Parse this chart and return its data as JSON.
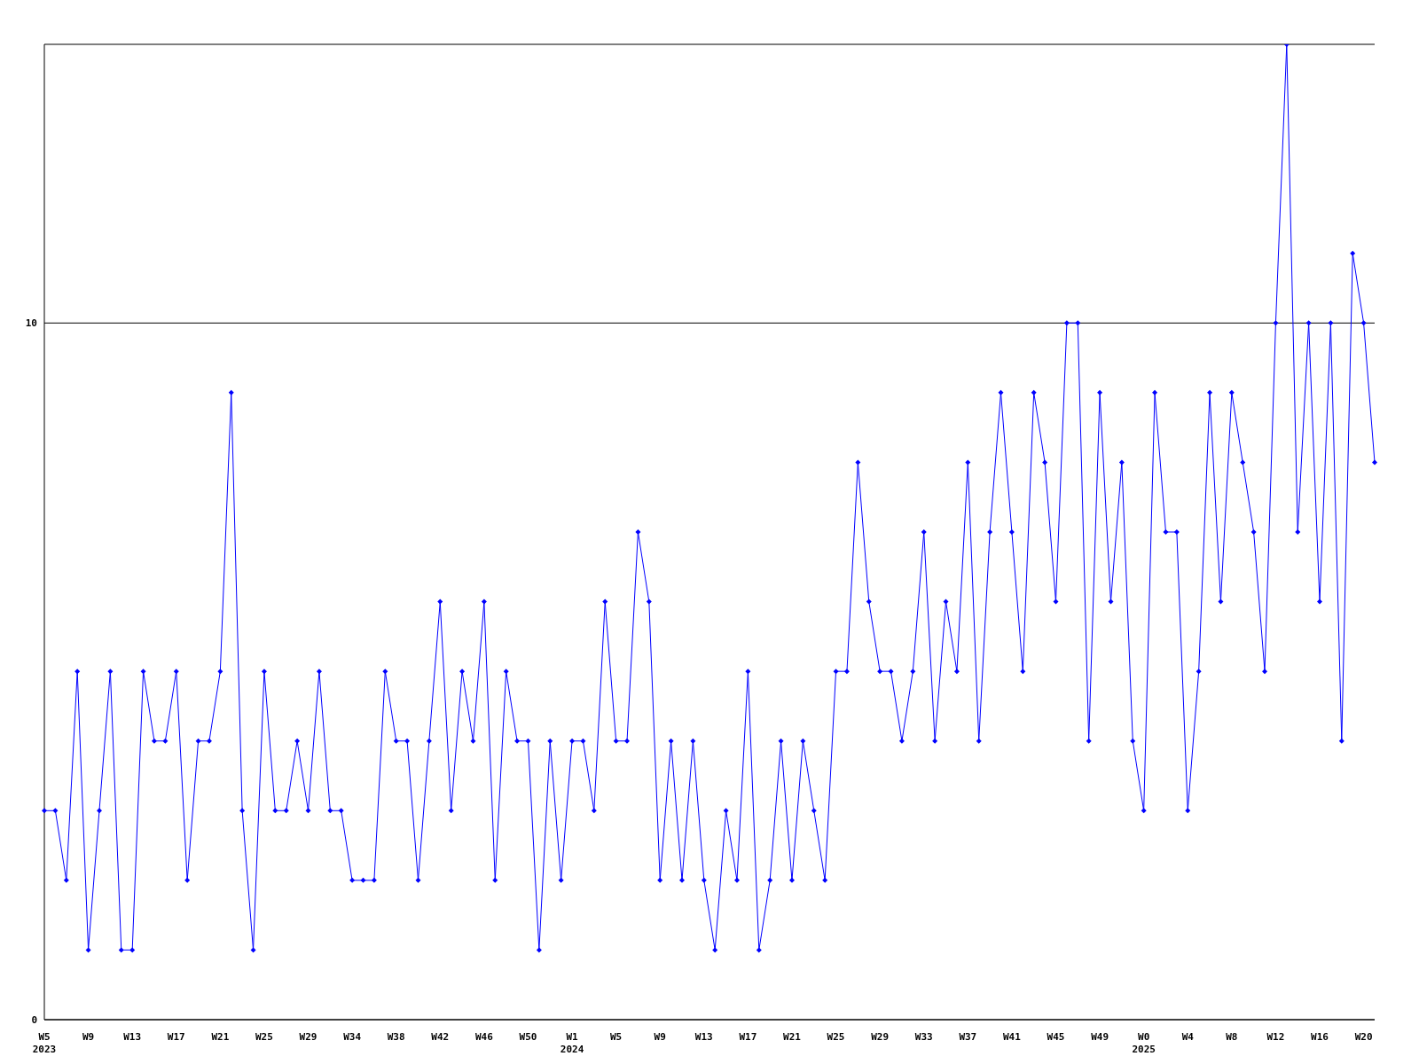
{
  "chart_data": {
    "type": "line",
    "categories": [
      "W5\n2023",
      null,
      null,
      null,
      "W9",
      null,
      null,
      null,
      "W13",
      null,
      null,
      null,
      "W17",
      null,
      null,
      null,
      "W21",
      null,
      null,
      null,
      "W25",
      null,
      null,
      null,
      "W29",
      null,
      null,
      null,
      "W34",
      null,
      null,
      null,
      "W38",
      null,
      null,
      null,
      "W42",
      null,
      null,
      null,
      "W46",
      null,
      null,
      null,
      "W50",
      null,
      null,
      null,
      "W1\n2024",
      null,
      null,
      null,
      "W5",
      null,
      null,
      null,
      "W9",
      null,
      null,
      null,
      "W13",
      null,
      null,
      null,
      "W17",
      null,
      null,
      null,
      "W21",
      null,
      null,
      null,
      "W25",
      null,
      null,
      null,
      "W29",
      null,
      null,
      null,
      "W33",
      null,
      null,
      null,
      "W37",
      null,
      null,
      null,
      "W41",
      null,
      null,
      null,
      "W45",
      null,
      null,
      null,
      "W49",
      null,
      null,
      null,
      "W0\n2025",
      null,
      null,
      null,
      "W4",
      null,
      null,
      null,
      "W8",
      null,
      null,
      null,
      "W12",
      null,
      null,
      null,
      "W16",
      null,
      null,
      null,
      "W20",
      null
    ],
    "series": [
      {
        "color": "#0000ff",
        "values": [
          3,
          3,
          2,
          5,
          1,
          3,
          5,
          1,
          1,
          5,
          4,
          4,
          5,
          2,
          4,
          4,
          5,
          9,
          3,
          1,
          5,
          3,
          3,
          4,
          3,
          5,
          3,
          3,
          2,
          2,
          2,
          5,
          4,
          4,
          2,
          4,
          6,
          3,
          5,
          4,
          6,
          2,
          5,
          4,
          4,
          1,
          4,
          2,
          4,
          4,
          3,
          6,
          4,
          4,
          7,
          6,
          2,
          4,
          2,
          4,
          2,
          1,
          3,
          2,
          5,
          1,
          2,
          4,
          2,
          4,
          3,
          2,
          5,
          5,
          8,
          6,
          5,
          5,
          4,
          5,
          7,
          4,
          6,
          5,
          8,
          4,
          7,
          9,
          7,
          5,
          9,
          8,
          6,
          10,
          10,
          4,
          9,
          6,
          8,
          4,
          3,
          9,
          7,
          7,
          3,
          5,
          9,
          6,
          9,
          8,
          7,
          5,
          10,
          14,
          7,
          10,
          6,
          10,
          4,
          11,
          10,
          8
        ]
      }
    ],
    "ylim": [
      0,
      14
    ],
    "yticks": [
      0,
      10
    ],
    "grid": "y",
    "marker": "diamond",
    "line_style": "solid"
  }
}
